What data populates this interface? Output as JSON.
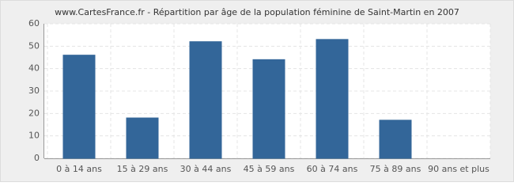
{
  "chart_data": {
    "type": "bar",
    "title": "www.CartesFrance.fr - Répartition par âge de la population féminine de Saint-Martin en 2007",
    "categories": [
      "0 à 14 ans",
      "15 à 29 ans",
      "30 à 44 ans",
      "45 à 59 ans",
      "60 à 74 ans",
      "75 à 89 ans",
      "90 ans et plus"
    ],
    "values": [
      46,
      18,
      52,
      44,
      53,
      17,
      0
    ],
    "color": "#336699",
    "ylim": [
      0,
      60
    ],
    "yticks": [
      0,
      10,
      20,
      30,
      40,
      50,
      60
    ],
    "grid": true
  }
}
